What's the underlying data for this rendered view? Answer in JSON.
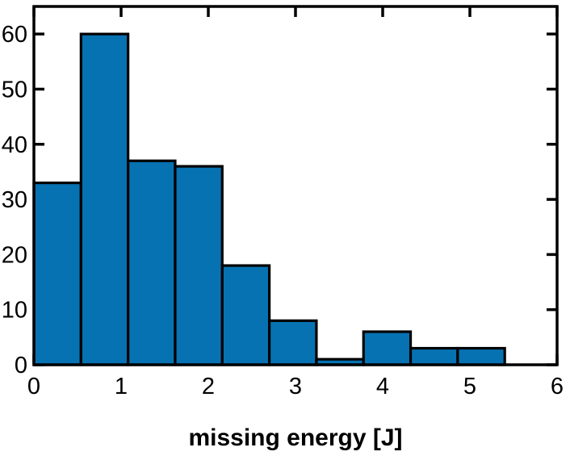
{
  "figure": {
    "background_color": "#ffffff",
    "axis_color": "#000000",
    "bar_fill_color": "#0772B1",
    "bar_edge_color": "#000000"
  },
  "chart_data": {
    "type": "bar",
    "subtype": "histogram",
    "title": "",
    "xlabel": "missing energy [J]",
    "ylabel": "",
    "bin_start": 0,
    "bin_width": 0.54,
    "bin_edges": [
      0,
      0.54,
      1.08,
      1.62,
      2.16,
      2.7,
      3.24,
      3.78,
      4.32,
      4.86,
      5.4
    ],
    "values": [
      33,
      60,
      37,
      36,
      18,
      8,
      1,
      6,
      3,
      3
    ],
    "xlim": [
      0,
      6
    ],
    "ylim": [
      0,
      65
    ],
    "xticks": [
      0,
      1,
      2,
      3,
      4,
      5,
      6
    ],
    "yticks": [
      0,
      10,
      20,
      30,
      40,
      50,
      60
    ],
    "grid": false,
    "legend": null,
    "box": true,
    "tick_direction": "in"
  }
}
